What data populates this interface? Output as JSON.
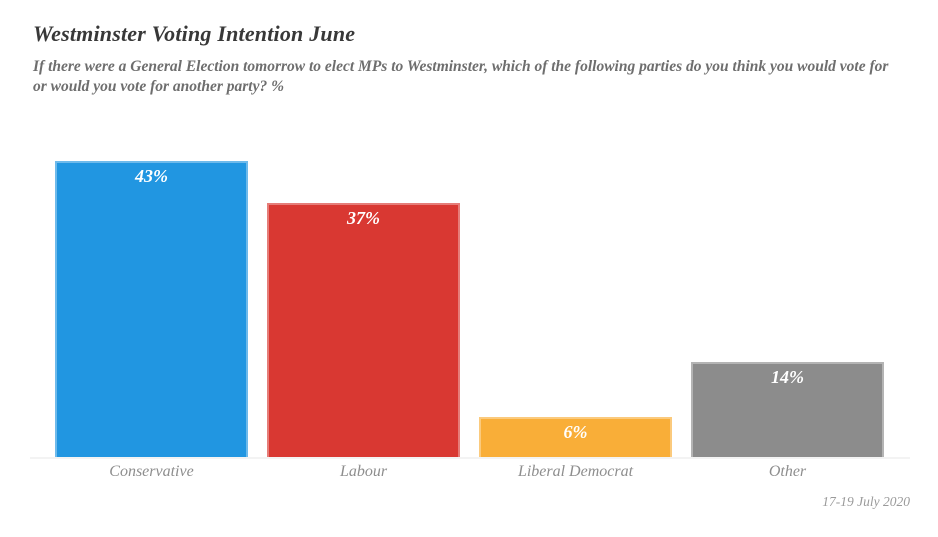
{
  "chart_data": {
    "type": "bar",
    "title": "Westminster Voting Intention June",
    "subtitle": "If there were a General Election tomorrow to elect MPs to Westminster, which of the following parties do you think you would vote for or would you vote for another party? %",
    "footnote": "17-19 July 2020",
    "categories": [
      "Conservative",
      "Labour",
      "Liberal Democrat",
      "Other"
    ],
    "values": [
      43,
      37,
      6,
      14
    ],
    "value_labels": [
      "43%",
      "37%",
      "6%",
      "14%"
    ],
    "colors": [
      "#2196E1",
      "#D93832",
      "#F9AE38",
      "#8C8C8C"
    ],
    "xlabel": "",
    "ylabel": "",
    "ylim": [
      0,
      43
    ],
    "grid": false,
    "legend": "none",
    "bar_label_color": "#FFFFFF",
    "category_label_color": "#8E8E8E",
    "axis_line_color": "#F3F3F3",
    "title_color": "#383838",
    "subtitle_color": "#6E6E6E",
    "footnote_color": "#9A9A9A"
  }
}
